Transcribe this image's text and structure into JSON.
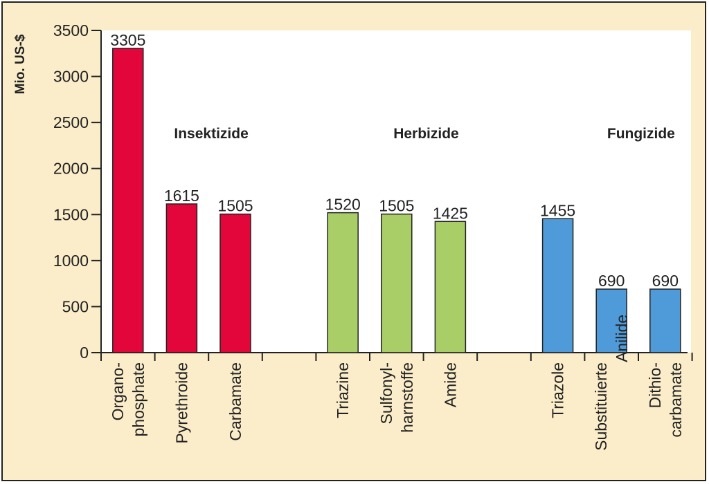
{
  "chart_data": {
    "type": "bar",
    "title": "",
    "xlabel": "",
    "ylabel": "Mio. US-$",
    "ylim": [
      0,
      3500
    ],
    "yticks": [
      {
        "value": 0,
        "label": "0"
      },
      {
        "value": 500,
        "label": "500"
      },
      {
        "value": 1000,
        "label": "1000"
      },
      {
        "value": 1500,
        "label": "1500"
      },
      {
        "value": 2000,
        "label": "2000"
      },
      {
        "value": 2500,
        "label": "2500"
      },
      {
        "value": 3000,
        "label": "3000"
      },
      {
        "value": 3500,
        "label": "3500"
      }
    ],
    "groups": [
      {
        "name": "Insektizide",
        "color": "#e2063a",
        "bars": [
          {
            "lines": [
              "Organo-",
              "phosphate"
            ],
            "value": 3305,
            "label": "3305"
          },
          {
            "lines": [
              "Pyrethroide"
            ],
            "value": 1615,
            "label": "1615"
          },
          {
            "lines": [
              "Carbamate"
            ],
            "value": 1505,
            "label": "1505"
          }
        ]
      },
      {
        "name": "Herbizide",
        "color": "#a9cd67",
        "bars": [
          {
            "lines": [
              "Triazine"
            ],
            "value": 1520,
            "label": "1520"
          },
          {
            "lines": [
              "Sulfonyl-",
              "harnstoffe"
            ],
            "value": 1505,
            "label": "1505"
          },
          {
            "lines": [
              "Amide"
            ],
            "value": 1425,
            "label": "1425"
          }
        ]
      },
      {
        "name": "Fungizide",
        "color": "#4f9ad8",
        "bars": [
          {
            "lines": [
              "Triazole"
            ],
            "value": 1455,
            "label": "1455"
          },
          {
            "lines": [
              "Substituierte",
              "Anilide"
            ],
            "value": 690,
            "label": "690"
          },
          {
            "lines": [
              "Dithio-",
              "carbamate"
            ],
            "value": 690,
            "label": "690"
          }
        ]
      }
    ]
  }
}
